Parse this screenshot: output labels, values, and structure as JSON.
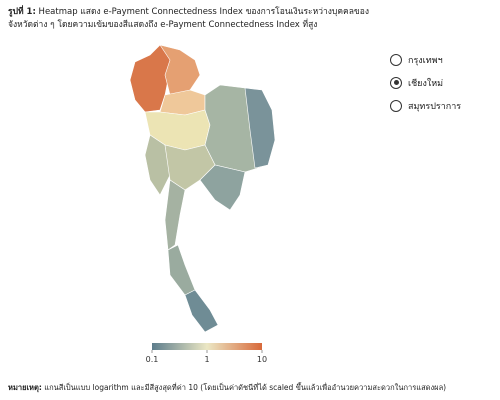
{
  "figure": {
    "label": "รูปที่ 1:",
    "title": "Heatmap แสดง e-Payment Connectedness Index ของการโอนเงินระหว่างบุคคลของจังหวัดต่าง ๆ โดยความเข้มของสีแสดงถึง e-Payment Connectedness Index ที่สูง"
  },
  "options": {
    "items": [
      "กรุงเทพฯ",
      "เชียงใหม่",
      "สมุทรปราการ"
    ],
    "selected": 1
  },
  "colorbar": {
    "lim": [
      0.1,
      10
    ],
    "ticks": [
      0.1,
      1,
      10
    ],
    "log": true,
    "colors": [
      "#5d7d8c",
      "#ebe7c4",
      "#d8693a"
    ]
  },
  "note": {
    "label": "หมายเหตุ:",
    "text": "แกนสีเป็นแบบ logarithm และมีสีสูงสุดที่ค่า 10 (โดยเป็นค่าดัชนีที่ได้ scaled ขึ้นแล้วเพื่ออำนวยความสะดวกในการแสดงผล)"
  }
}
